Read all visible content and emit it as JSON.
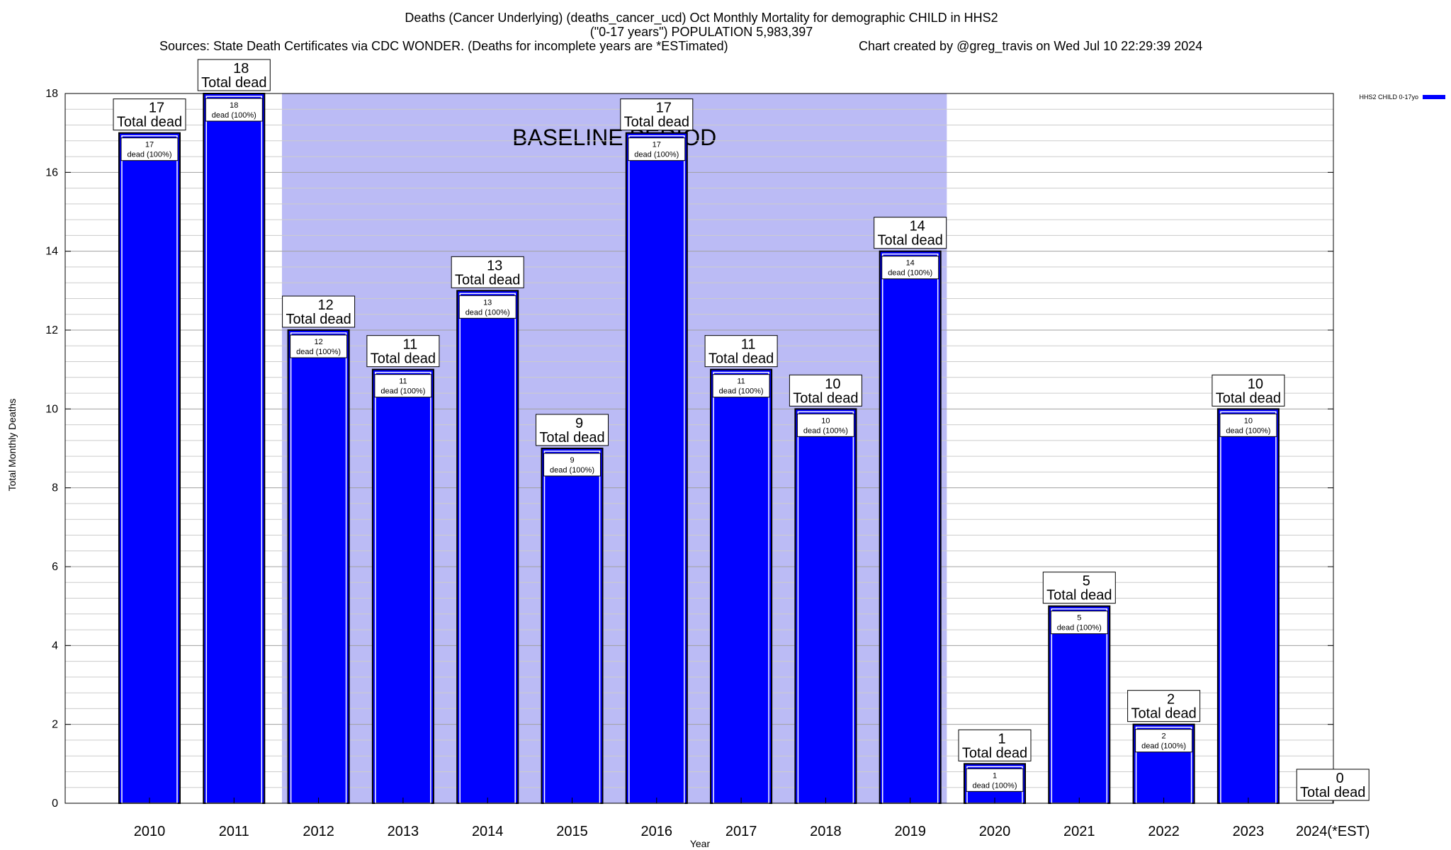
{
  "chart_data": {
    "type": "bar",
    "title_lines": [
      "Deaths (Cancer Underlying) (deaths_cancer_ucd) Oct Monthly Mortality for demographic CHILD in HHS2",
      "(\"0-17 years\") POPULATION 5,983,397",
      "Sources: State Death Certificates via CDC WONDER. (Deaths for incomplete years are *ESTimated)",
      "Chart created by @greg_travis on Wed Jul 10 22:29:39 2024"
    ],
    "xlabel": "Year",
    "ylabel": "Total Monthly Deaths",
    "ylim": [
      0,
      18
    ],
    "yticks": [
      0,
      2,
      4,
      6,
      8,
      10,
      12,
      14,
      16,
      18
    ],
    "grid": true,
    "categories": [
      "2010",
      "2011",
      "2012",
      "2013",
      "2014",
      "2015",
      "2016",
      "2017",
      "2018",
      "2019",
      "2020",
      "2021",
      "2022",
      "2023",
      "2024(*EST)"
    ],
    "series": [
      {
        "name": "HHS2 CHILD 0-17yo",
        "color": "#0000ff",
        "values": [
          17,
          18,
          12,
          11,
          13,
          9,
          17,
          11,
          10,
          14,
          1,
          5,
          2,
          10,
          0
        ]
      }
    ],
    "total_label_suffix": "Total dead",
    "inner_label_suffix": "dead (100%)",
    "baseline_period": {
      "label": "BASELINE PERIOD",
      "start_category": "2012",
      "end_category": "2019",
      "color": "#bbbbf5"
    },
    "legend_position": "top-right"
  }
}
